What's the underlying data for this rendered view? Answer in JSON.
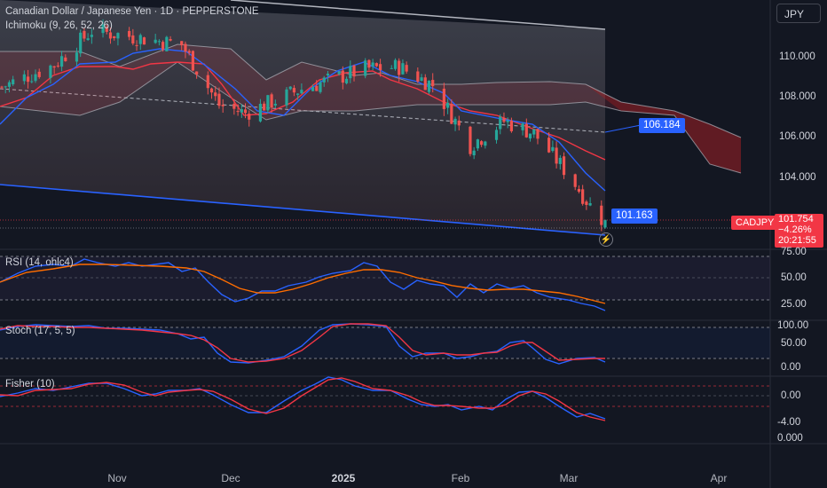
{
  "header": {
    "title": "Canadian Dollar / Japanese Yen · 1D · PEPPERSTONE",
    "ichimoku_legend": "Ichimoku (9, 26, 52, 26)",
    "rsi_legend": "RSI (14, ohlc4)",
    "stoch_legend": "Stoch (17, 5, 5)",
    "fisher_legend": "Fisher (10)",
    "currency": "JPY"
  },
  "price_axis": {
    "ticks": [
      "110.000",
      "108.000",
      "106.000",
      "104.000"
    ]
  },
  "rsi_axis": {
    "ticks": [
      "75.00",
      "50.00",
      "25.00"
    ]
  },
  "stoch_axis": {
    "ticks": [
      "100.00",
      "50.00",
      "0.00"
    ]
  },
  "fisher_axis": {
    "ticks": [
      "0.00",
      "-4.00",
      "0.000"
    ]
  },
  "time_axis": {
    "labels": [
      "Nov",
      "Dec",
      "2025",
      "Feb",
      "Mar",
      "Apr"
    ]
  },
  "tags": {
    "symbol": "CADJPY",
    "price": "101.754",
    "change": "−4.26%",
    "countdown": "20:21:55",
    "channel_mid": "106.184",
    "channel_low": "101.163"
  },
  "colors": {
    "bull": "#26a69a",
    "bear": "#ef5350",
    "conversion": "#2962ff",
    "base": "#f23645",
    "rsi": "#2962ff",
    "rsi_ma": "#ff6d00",
    "stoch_k": "#2962ff",
    "stoch_d": "#f23645",
    "fisher": "#2962ff",
    "fisher_trigger": "#f23645",
    "price_tag": "#f23645",
    "channel_tag": "#2962ff"
  },
  "chart_data": [
    {
      "type": "candlestick",
      "symbol": "CADJPY",
      "timeframe": "1D",
      "ylim": [
        100.9,
        112.8
      ],
      "x_labels": [
        "Nov",
        "Dec",
        "2025",
        "Feb",
        "Mar",
        "Apr"
      ],
      "y_ticks": [
        104,
        106,
        108,
        110
      ],
      "close_trend": [
        {
          "date": "2024-10-01",
          "value": 108.5
        },
        {
          "date": "2024-10-15",
          "value": 109.6
        },
        {
          "date": "2024-10-25",
          "value": 111.3
        },
        {
          "date": "2024-11-05",
          "value": 111.0
        },
        {
          "date": "2024-11-18",
          "value": 110.6
        },
        {
          "date": "2024-11-28",
          "value": 107.6
        },
        {
          "date": "2024-12-05",
          "value": 107.2
        },
        {
          "date": "2024-12-20",
          "value": 108.4
        },
        {
          "date": "2025-01-06",
          "value": 109.4
        },
        {
          "date": "2025-01-15",
          "value": 109.5
        },
        {
          "date": "2025-01-24",
          "value": 108.6
        },
        {
          "date": "2025-02-03",
          "value": 105.6
        },
        {
          "date": "2025-02-12",
          "value": 106.8
        },
        {
          "date": "2025-02-20",
          "value": 106.2
        },
        {
          "date": "2025-03-01",
          "value": 104.2
        },
        {
          "date": "2025-03-07",
          "value": 102.6
        },
        {
          "date": "2025-03-11",
          "value": 101.754
        }
      ],
      "last_price": 101.754,
      "change_percent": -4.26,
      "channel_levels": {
        "upper_end": 112.6,
        "mid_end": 106.184,
        "lower_end": 101.163
      }
    },
    {
      "type": "line",
      "name": "RSI (14, ohlc4)",
      "ylim": [
        20,
        80
      ],
      "bands": [
        70,
        50,
        30
      ],
      "series": [
        {
          "x": [
            "Oct",
            "Nov",
            "Dec",
            "2025",
            "Feb",
            "Mar"
          ],
          "values": [
            57,
            64,
            38,
            62,
            45,
            24
          ]
        }
      ]
    },
    {
      "type": "line",
      "name": "Stoch (17, 5, 5)",
      "ylim": [
        0,
        100
      ],
      "bands": [
        80,
        20
      ],
      "series": [
        {
          "x": [
            "Oct",
            "Nov",
            "Dec",
            "2025",
            "Feb",
            "Mar"
          ],
          "values": [
            80,
            85,
            10,
            90,
            40,
            15
          ]
        }
      ]
    },
    {
      "type": "line",
      "name": "Fisher (10)",
      "ylim": [
        -5,
        3
      ],
      "bands": [
        1.5,
        -1.5
      ],
      "series": [
        {
          "x": [
            "Oct",
            "Nov",
            "Dec",
            "2025",
            "Feb",
            "Mar"
          ],
          "values": [
            0.5,
            2.0,
            -2.8,
            2.8,
            -1.6,
            -3.9
          ]
        }
      ]
    }
  ]
}
